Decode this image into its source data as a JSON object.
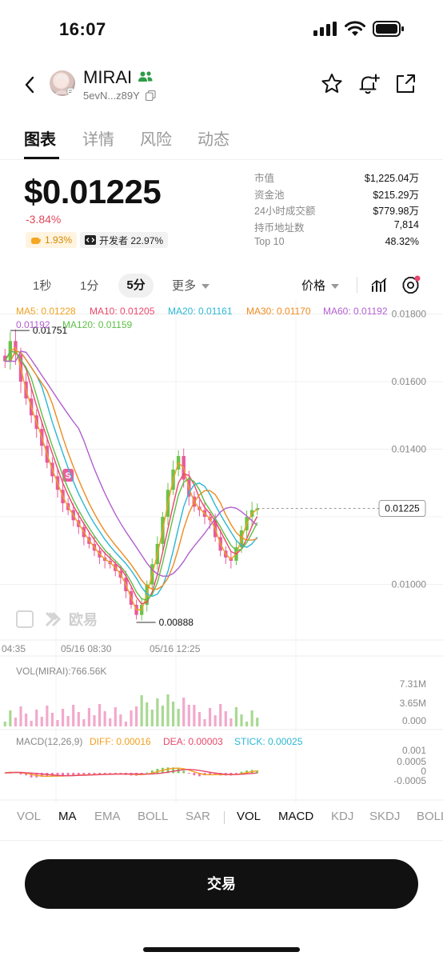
{
  "status": {
    "time": "16:07"
  },
  "token": {
    "name": "MIRAI",
    "address": "5evN...z89Y"
  },
  "tabs": [
    "图表",
    "详情",
    "风险",
    "动态"
  ],
  "price": {
    "main": "$0.01225",
    "change": "-3.84%",
    "badge_a": "1.93%",
    "badge_b": "开发者 22.97%"
  },
  "stats": [
    {
      "label": "市值",
      "value": "$1,225.04万"
    },
    {
      "label": "资金池",
      "value": "$215.29万"
    },
    {
      "label": "24小时成交额",
      "value": "$779.98万"
    },
    {
      "label": "持币地址数",
      "value": "7,814"
    },
    {
      "label": "Top 10",
      "value": "48.32%"
    }
  ],
  "toolbar": {
    "tf_1s": "1秒",
    "tf_1m": "1分",
    "tf_5m": "5分",
    "more": "更多",
    "price_type": "价格"
  },
  "chart_data": {
    "type": "line",
    "ma_labels": [
      {
        "text": "MA5: 0.01228",
        "color": "#f0a020"
      },
      {
        "text": "MA10: 0.01205",
        "color": "#e8476b"
      },
      {
        "text": "MA20: 0.01161",
        "color": "#2bb7d4"
      },
      {
        "text": "MA30: 0.01170",
        "color": "#ef8a1f"
      },
      {
        "text": "MA60: 0.01192",
        "color": "#b15fcf"
      },
      {
        "text": "MA120: 0.01159",
        "color": "#5cbf47"
      }
    ],
    "y_ticks": [
      "0.01800",
      "0.01600",
      "0.01400",
      "0.01000"
    ],
    "y_range": [
      0.0085,
      0.0182
    ],
    "current_price": "0.01225",
    "high_label": "0.01751",
    "low_label": "0.00888",
    "x_labels": [
      "04:35",
      "05/16 08:30",
      "05/16 12:25"
    ],
    "closes": [
      0.0166,
      0.0172,
      0.0168,
      0.016,
      0.0155,
      0.015,
      0.0146,
      0.0141,
      0.0136,
      0.0132,
      0.0128,
      0.0124,
      0.0122,
      0.0119,
      0.0117,
      0.0114,
      0.0112,
      0.011,
      0.0108,
      0.0107,
      0.0106,
      0.0104,
      0.0102,
      0.0098,
      0.0094,
      0.0091,
      0.0094,
      0.01,
      0.0106,
      0.0112,
      0.012,
      0.0128,
      0.0134,
      0.0138,
      0.0131,
      0.0126,
      0.0123,
      0.0122,
      0.012,
      0.0119,
      0.0114,
      0.011,
      0.0108,
      0.0107,
      0.0111,
      0.0116,
      0.012,
      0.0122,
      0.01225
    ],
    "volume": {
      "title": "VOL(MIRAI):766.56K",
      "y_ticks": [
        "7.31M",
        "3.65M",
        "0.000"
      ]
    },
    "macd": {
      "title": "MACD(12,26,9)",
      "diff": "DIFF: 0.00016",
      "dea": "DEA: 0.00003",
      "stick": "STICK: 0.00025",
      "y_ticks": [
        "0.001",
        "0.0005",
        "0",
        "-0.0005"
      ]
    },
    "watermark": "欧易",
    "marker": "S"
  },
  "indicators": {
    "main": [
      "VOL",
      "MA",
      "EMA",
      "BOLL",
      "SAR"
    ],
    "sub": [
      "VOL",
      "MACD",
      "KDJ",
      "SKDJ",
      "BOLL"
    ]
  },
  "trade_button": "交易"
}
